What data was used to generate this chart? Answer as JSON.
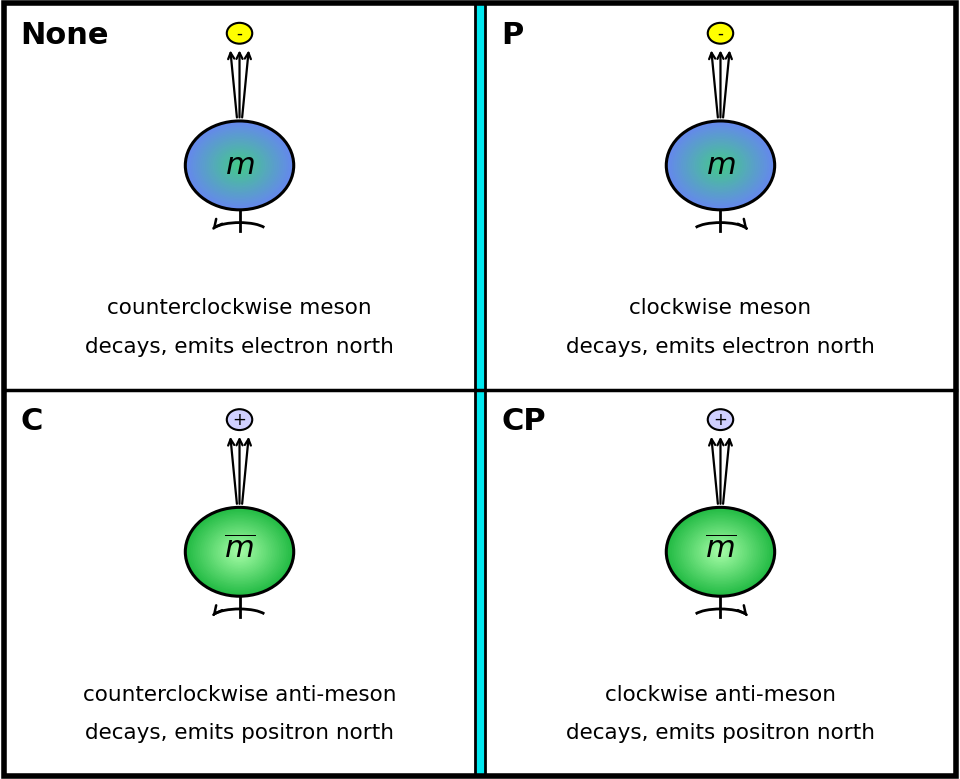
{
  "panels": [
    {
      "label": "None",
      "is_anti": false,
      "ccw": true,
      "charge": "-",
      "charge_is_minus": true,
      "desc1": "counterclockwise meson",
      "desc2": "decays, emits electron north"
    },
    {
      "label": "P",
      "is_anti": false,
      "ccw": false,
      "charge": "-",
      "charge_is_minus": true,
      "desc1": "clockwise meson",
      "desc2": "decays, emits electron north"
    },
    {
      "label": "C",
      "is_anti": true,
      "ccw": true,
      "charge": "+",
      "charge_is_minus": false,
      "desc1": "counterclockwise anti-meson",
      "desc2": "decays, emits positron north"
    },
    {
      "label": "CP",
      "is_anti": true,
      "ccw": false,
      "charge": "+",
      "charge_is_minus": false,
      "desc1": "clockwise anti-meson",
      "desc2": "decays, emits positron north"
    }
  ],
  "cyan_color": "#00E8F0",
  "border_color": "#111111",
  "bg_color": "#FFFFFF",
  "electron_color": "#FFFF00",
  "positron_color": "#D0D0FF",
  "meson_center_color": "#44CC88",
  "meson_edge_color": "#6688EE",
  "antimeson_center_color": "#AAFFAA",
  "antimeson_edge_color": "#22BB44",
  "desc_fontsize": 15.5,
  "label_fontsize": 22
}
